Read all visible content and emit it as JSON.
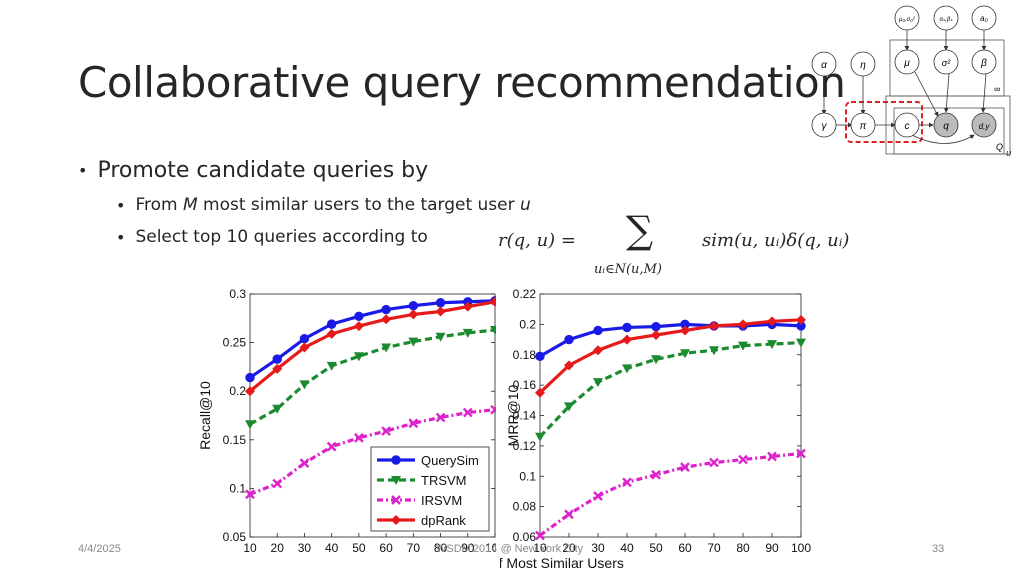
{
  "slide": {
    "title": "Collaborative query recommendation",
    "bullet_main": "Promote candidate queries by",
    "sub1_a": "From ",
    "sub1_b": "M",
    "sub1_c": " most similar users to the target user ",
    "sub1_d": "u",
    "sub2": "Select top 10 queries according to",
    "formula_lhs": "r(q, u) =",
    "formula_sum": "∑",
    "formula_sub": "uᵢ∈N(u,M)",
    "formula_rhs": "sim(u, uᵢ)δ(q, uᵢ)",
    "footer_date": "4/4/2025",
    "footer_center": "WSDM'2014 @ New York City",
    "footer_page": "33"
  },
  "graphical_model": {
    "nodes": [
      {
        "id": "mu0",
        "label": "μ₀,σ₀²"
      },
      {
        "id": "ab",
        "label": "αₛ,βₛ"
      },
      {
        "id": "a0",
        "label": "a₀"
      },
      {
        "id": "alpha",
        "label": "α"
      },
      {
        "id": "eta",
        "label": "η"
      },
      {
        "id": "mu",
        "label": "μ"
      },
      {
        "id": "sigma",
        "label": "σ²"
      },
      {
        "id": "beta",
        "label": "β"
      },
      {
        "id": "gamma",
        "label": "γ"
      },
      {
        "id": "pi",
        "label": "π"
      },
      {
        "id": "c",
        "label": "c"
      },
      {
        "id": "q",
        "label": "q"
      },
      {
        "id": "dy",
        "label": "d,y"
      }
    ],
    "plate_labels": {
      "infinity": "∞",
      "Q": "Q",
      "U": "U"
    }
  },
  "legend": [
    "QuerySim",
    "TRSVM",
    "IRSVM",
    "dpRank"
  ],
  "colors": {
    "QuerySim": "#1a1ae6",
    "TRSVM": "#1c8a2e",
    "IRSVM": "#dd22cc",
    "dpRank": "#e61a1a"
  },
  "chart_data": [
    {
      "type": "line",
      "x": [
        10,
        20,
        30,
        40,
        50,
        60,
        70,
        80,
        90,
        100
      ],
      "ylabel": "Recall@10",
      "xlabel": "",
      "ylim": [
        0.05,
        0.3
      ],
      "yticks": [
        "0.05",
        "0.1",
        "0.15",
        "0.2",
        "0.25",
        "0.3"
      ],
      "xticks": [
        "10",
        "20",
        "30",
        "40",
        "50",
        "60",
        "70",
        "80",
        "90",
        "100"
      ],
      "legend_position": "bottom-right",
      "series": [
        {
          "name": "QuerySim",
          "values": [
            0.214,
            0.233,
            0.254,
            0.269,
            0.277,
            0.284,
            0.288,
            0.291,
            0.292,
            0.293
          ]
        },
        {
          "name": "TRSVM",
          "values": [
            0.166,
            0.182,
            0.207,
            0.226,
            0.236,
            0.245,
            0.251,
            0.256,
            0.26,
            0.263
          ]
        },
        {
          "name": "IRSVM",
          "values": [
            0.094,
            0.105,
            0.126,
            0.143,
            0.152,
            0.159,
            0.167,
            0.173,
            0.178,
            0.181
          ]
        },
        {
          "name": "dpRank",
          "values": [
            0.2,
            0.223,
            0.245,
            0.259,
            0.267,
            0.274,
            0.279,
            0.282,
            0.287,
            0.292
          ]
        }
      ]
    },
    {
      "type": "line",
      "x": [
        10,
        20,
        30,
        40,
        50,
        60,
        70,
        80,
        90,
        100
      ],
      "ylabel": "MRR@10",
      "xlabel": "Number of Most Similar Users",
      "ylim": [
        0.06,
        0.22
      ],
      "yticks": [
        "0.06",
        "0.08",
        "0.1",
        "0.12",
        "0.14",
        "0.16",
        "0.18",
        "0.2",
        "0.22"
      ],
      "xticks": [
        "10",
        "20",
        "30",
        "40",
        "50",
        "60",
        "70",
        "80",
        "90",
        "100"
      ],
      "series": [
        {
          "name": "QuerySim",
          "values": [
            0.179,
            0.19,
            0.196,
            0.198,
            0.1985,
            0.2,
            0.199,
            0.199,
            0.2,
            0.199
          ]
        },
        {
          "name": "TRSVM",
          "values": [
            0.126,
            0.146,
            0.162,
            0.171,
            0.177,
            0.181,
            0.183,
            0.186,
            0.187,
            0.188
          ]
        },
        {
          "name": "IRSVM",
          "values": [
            0.061,
            0.075,
            0.087,
            0.096,
            0.101,
            0.106,
            0.109,
            0.111,
            0.113,
            0.115
          ]
        },
        {
          "name": "dpRank",
          "values": [
            0.155,
            0.173,
            0.183,
            0.19,
            0.193,
            0.196,
            0.199,
            0.2,
            0.202,
            0.203
          ]
        }
      ]
    }
  ]
}
